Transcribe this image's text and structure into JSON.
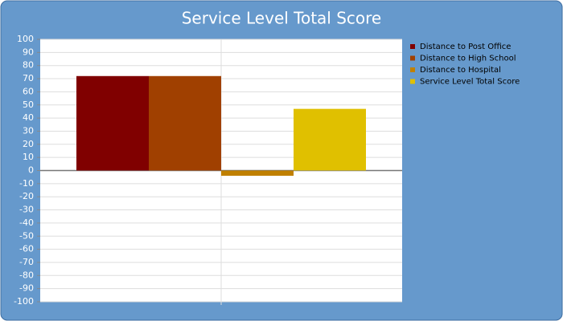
{
  "chart_data": {
    "type": "bar",
    "title": "Service Level Total Score",
    "categories": [
      null
    ],
    "series": [
      {
        "name": "Distance to Post Office",
        "color": "#800000",
        "values": [
          72
        ]
      },
      {
        "name": "Distance to High School",
        "color": "#a04000",
        "values": [
          72
        ]
      },
      {
        "name": "Distance to Hospital",
        "color": "#c08000",
        "values": [
          -4
        ]
      },
      {
        "name": "Service Level Total Score",
        "color": "#e0c000",
        "values": [
          47
        ]
      }
    ],
    "ylim": [
      -100,
      100
    ],
    "yticks": [
      -100,
      -90,
      -80,
      -70,
      -60,
      -50,
      -40,
      -30,
      -20,
      -10,
      0,
      10,
      20,
      30,
      40,
      50,
      60,
      70,
      80,
      90,
      100
    ],
    "grid": true,
    "legend": "right"
  }
}
